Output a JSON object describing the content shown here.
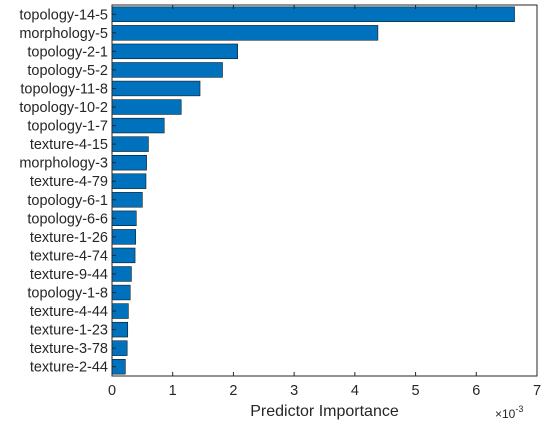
{
  "chart_data": {
    "type": "bar",
    "orientation": "horizontal",
    "title": "",
    "xlabel": "Predictor Importance",
    "ylabel": "",
    "x_multiplier_label": "×10",
    "x_multiplier_exp": "-3",
    "xlim": [
      0,
      7
    ],
    "xticks": [
      "0",
      "1",
      "2",
      "3",
      "4",
      "5",
      "6",
      "7"
    ],
    "grid": false,
    "bar_color": "#0072BD",
    "categories": [
      "topology-14-5",
      "morphology-5",
      "topology-2-1",
      "topology-5-2",
      "topology-11-8",
      "topology-10-2",
      "topology-1-7",
      "texture-4-15",
      "morphology-3",
      "texture-4-79",
      "topology-6-1",
      "topology-6-6",
      "texture-1-26",
      "texture-4-74",
      "texture-9-44",
      "topology-1-8",
      "texture-4-44",
      "texture-1-23",
      "texture-3-78",
      "texture-2-44"
    ],
    "values": [
      6.63,
      4.38,
      2.07,
      1.82,
      1.45,
      1.14,
      0.86,
      0.6,
      0.57,
      0.56,
      0.5,
      0.4,
      0.39,
      0.38,
      0.32,
      0.3,
      0.27,
      0.26,
      0.25,
      0.22
    ]
  }
}
